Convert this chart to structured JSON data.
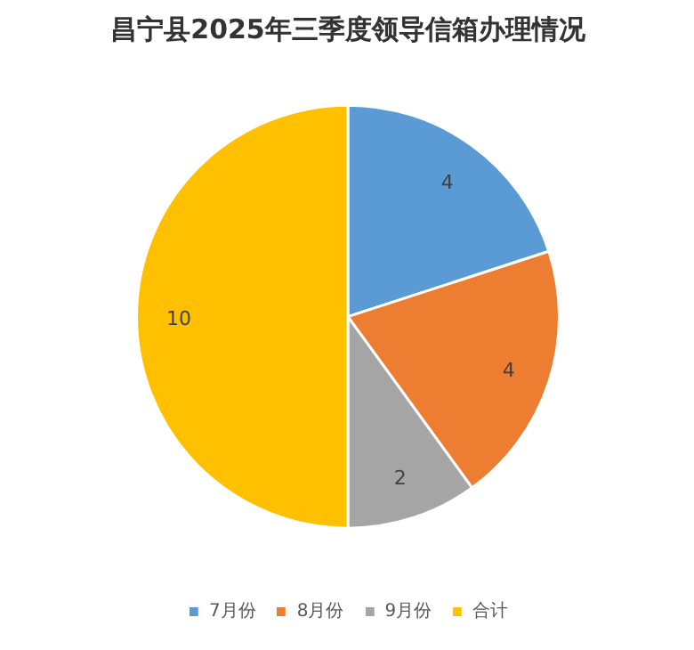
{
  "chart_data": {
    "type": "pie",
    "title": "昌宁县2025年三季度领导信箱办理情况",
    "categories": [
      "7月份",
      "8月份",
      "9月份",
      "合计"
    ],
    "values": [
      4,
      4,
      2,
      10
    ],
    "colors": [
      "#5b9bd5",
      "#ed7d31",
      "#a5a5a5",
      "#ffc000"
    ],
    "data_labels": true,
    "legend": "bottom"
  }
}
